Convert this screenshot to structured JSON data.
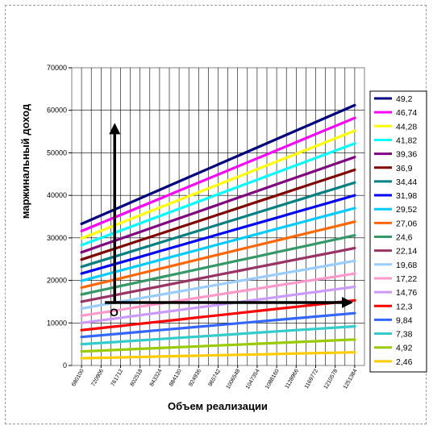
{
  "chart_data": {
    "type": "line",
    "title": "",
    "xlabel": "Объем реализации",
    "ylabel": "маржинальный доход",
    "ylim": [
      0,
      70000
    ],
    "y_ticks": [
      0,
      10000,
      20000,
      30000,
      40000,
      50000,
      60000,
      70000
    ],
    "x": [
      680100,
      720906,
      761712,
      802518,
      843324,
      884130,
      924936,
      965742,
      1006548,
      1047354,
      1088160,
      1128966,
      1169772,
      1210578,
      1251384
    ],
    "x_tick_labels": [
      "680100",
      "720906",
      "761712",
      "802518",
      "843324",
      "884130",
      "924936",
      "965742",
      "1006548",
      "1047354",
      "1088160",
      "1128966",
      "1169772",
      "1210578",
      "1251384"
    ],
    "grid": true,
    "legend_position": "right",
    "series": [
      {
        "name": "49,2",
        "color": "#000080",
        "start": 33300,
        "end": 61200
      },
      {
        "name": "46,74",
        "color": "#ff00ff",
        "start": 31600,
        "end": 58200
      },
      {
        "name": "44,28",
        "color": "#ffff00",
        "start": 29900,
        "end": 55200
      },
      {
        "name": "41,82",
        "color": "#00ffff",
        "start": 28300,
        "end": 52200
      },
      {
        "name": "39,36",
        "color": "#800080",
        "start": 26600,
        "end": 49000
      },
      {
        "name": "36,9",
        "color": "#800000",
        "start": 24900,
        "end": 46000
      },
      {
        "name": "34,44",
        "color": "#008080",
        "start": 23200,
        "end": 43000
      },
      {
        "name": "31,98",
        "color": "#0000ff",
        "start": 21600,
        "end": 40000
      },
      {
        "name": "29,52",
        "color": "#00ccff",
        "start": 19900,
        "end": 37000
      },
      {
        "name": "27,06",
        "color": "#ff6600",
        "start": 18300,
        "end": 33800
      },
      {
        "name": "24,6",
        "color": "#339966",
        "start": 16700,
        "end": 30600
      },
      {
        "name": "22,14",
        "color": "#993366",
        "start": 15000,
        "end": 27600
      },
      {
        "name": "19,68",
        "color": "#99ccff",
        "start": 13400,
        "end": 24600
      },
      {
        "name": "17,22",
        "color": "#ff99cc",
        "start": 11700,
        "end": 21600
      },
      {
        "name": "14,76",
        "color": "#cc99ff",
        "start": 10000,
        "end": 18500
      },
      {
        "name": "12,3",
        "color": "#ff0000",
        "start": 8300,
        "end": 15300
      },
      {
        "name": "9,84",
        "color": "#3366ff",
        "start": 6700,
        "end": 12300
      },
      {
        "name": "7,38",
        "color": "#33cccc",
        "start": 5000,
        "end": 9200
      },
      {
        "name": "4,92",
        "color": "#99cc00",
        "start": 3300,
        "end": 6100
      },
      {
        "name": "2,46",
        "color": "#ffcc00",
        "start": 1700,
        "end": 3100
      }
    ],
    "annotations": {
      "origin_label": "О",
      "vertical_arrow": {
        "x_index": 1.7,
        "from": 14500,
        "to": 56500
      },
      "horizontal_arrow": {
        "from_index": 1.2,
        "to_index": 13.8,
        "y": 14800
      }
    }
  }
}
